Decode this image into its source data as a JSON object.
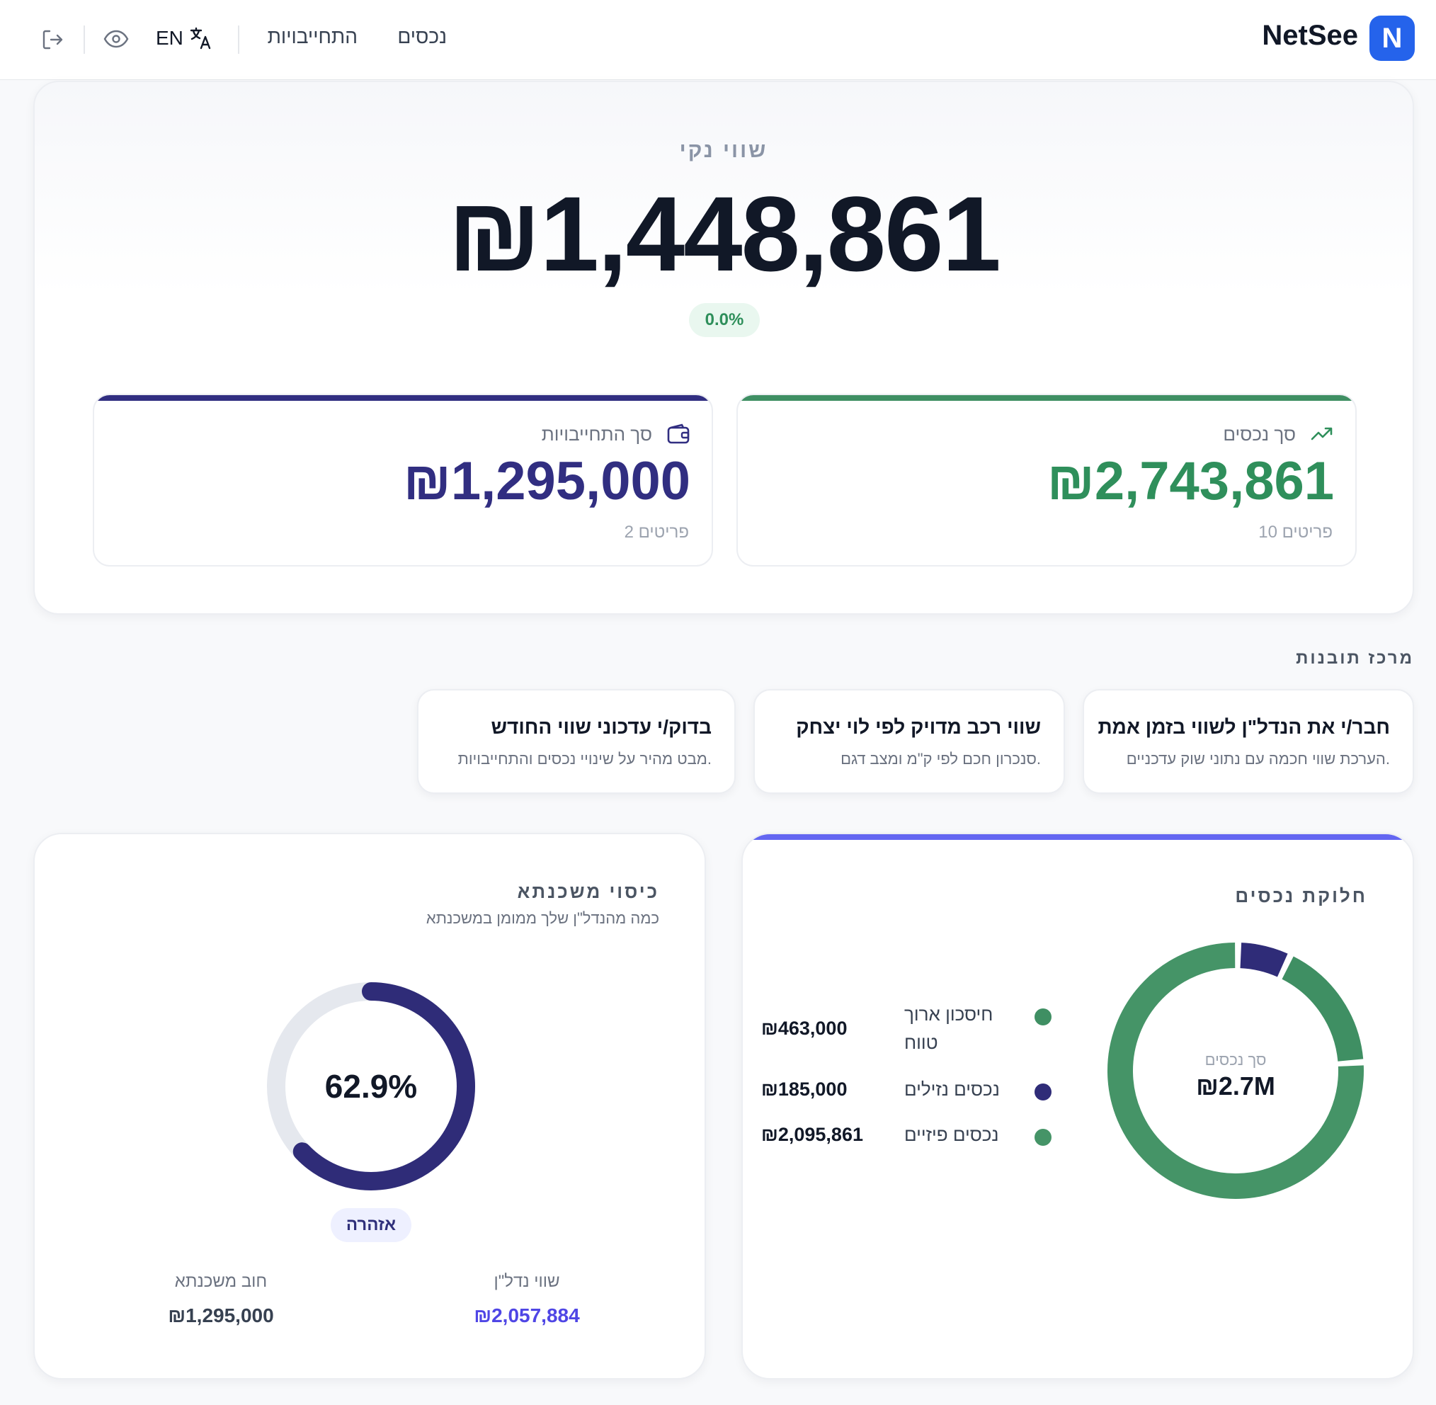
{
  "header": {
    "brand": "NetSee",
    "logo_letter": "N",
    "nav": {
      "assets": "נכסים",
      "liabilities": "התחייבויות"
    },
    "language": "EN"
  },
  "hero": {
    "label": "שווי נקי",
    "value": "₪1,448,861",
    "change": "0.0%",
    "assets": {
      "title": "סך נכסים",
      "value": "₪2,743,861",
      "count": "10 פריטים",
      "color": "#2f8f5b"
    },
    "liabilities": {
      "title": "סך התחייבויות",
      "value": "₪1,295,000",
      "count": "2 פריטים",
      "color": "#312e81"
    }
  },
  "insights": {
    "title": "מרכז תובנות",
    "items": [
      {
        "title": "חבר/י את הנדל\"ן לשווי בזמן אמת",
        "desc": "הערכת שווי חכמה עם נתוני שוק עדכניים."
      },
      {
        "title": "שווי רכב מדויק לפי לוי יצחק",
        "desc": "סנכרון חכם לפי ק\"מ ומצב דגם."
      },
      {
        "title": "בדוק/י עדכוני שווי החודש",
        "desc": "מבט מהיר על שינויי נכסים והתחייבויות."
      }
    ]
  },
  "distribution": {
    "title": "חלוקת נכסים",
    "center_label": "סך נכסים",
    "center_value": "₪2.7M",
    "chart_data": {
      "type": "pie",
      "categories": [
        "חיסכון ארוך טווח",
        "נכסים נזילים",
        "נכסים פיזיים"
      ],
      "values": [
        463000,
        185000,
        2095861
      ],
      "colors": [
        "#3f8f63",
        "#2f2c78",
        "#459467"
      ]
    },
    "legend": [
      {
        "label": "חיסכון ארוך טווח",
        "value": "₪463,000",
        "color": "#3f8f63"
      },
      {
        "label": "נכסים נזילים",
        "value": "₪185,000",
        "color": "#2f2c78"
      },
      {
        "label": "נכסים פיזיים",
        "value": "₪2,095,861",
        "color": "#459467"
      }
    ]
  },
  "mortgage": {
    "title": "כיסוי משכנתא",
    "subtitle": "כמה מהנדל\"ן שלך ממומן במשכנתא",
    "percent_label": "62.9%",
    "percent": 62.9,
    "status": "אזהרה",
    "property_label": "שווי נדל\"ן",
    "property_value": "₪2,057,884",
    "debt_label": "חוב משכנתא",
    "debt_value": "₪1,295,000"
  }
}
